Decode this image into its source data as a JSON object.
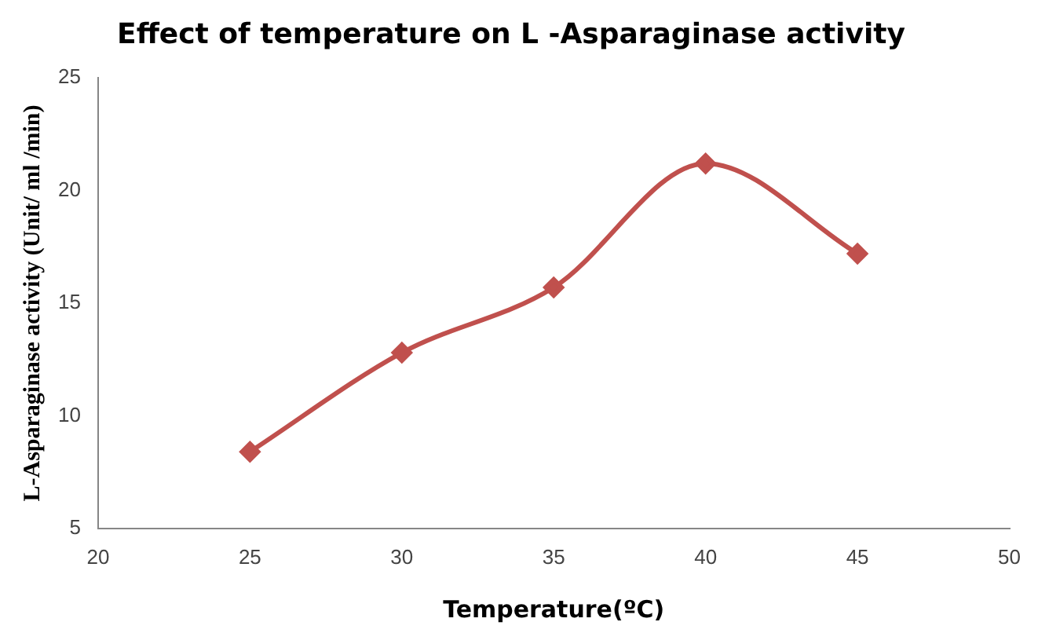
{
  "chart_data": {
    "type": "line",
    "title": "Effect of temperature on L -Asparaginase activity",
    "xlabel": "Temperature(ºC)",
    "ylabel": "L-Asparaginase activity (Unit/ ml /min)",
    "x": [
      25,
      30,
      35,
      40,
      45
    ],
    "series": [
      {
        "color": "#c0504d",
        "values": [
          8.4,
          12.8,
          15.7,
          21.2,
          17.2
        ]
      }
    ],
    "xlim": [
      20,
      50
    ],
    "xticks": [
      20,
      25,
      30,
      35,
      40,
      45,
      50
    ],
    "ylim": [
      5,
      25
    ],
    "yticks": [
      5,
      10,
      15,
      20,
      25
    ],
    "grid": false,
    "legend": false,
    "marker": "diamond",
    "line_style": "solid"
  }
}
